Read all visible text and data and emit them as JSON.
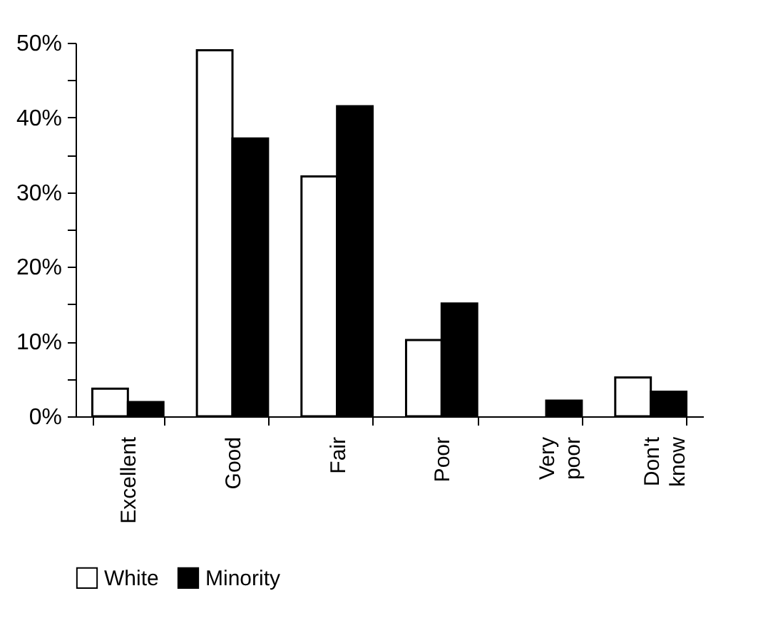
{
  "chart_data": {
    "type": "bar",
    "categories": [
      "Excellent",
      "Good",
      "Fair",
      "Poor",
      "Very poor",
      "Don't know"
    ],
    "series": [
      {
        "name": "White",
        "color": "#ffffff",
        "values": [
          3.7,
          49.0,
          32.1,
          10.2,
          null,
          5.2
        ]
      },
      {
        "name": "Minority",
        "color": "#000000",
        "values": [
          1.9,
          37.2,
          41.5,
          15.1,
          2.1,
          3.3
        ]
      }
    ],
    "ylim": [
      0,
      50
    ],
    "yticks": [
      {
        "value": 0,
        "label": "0%"
      },
      {
        "value": 5,
        "label": null
      },
      {
        "value": 10,
        "label": "10%"
      },
      {
        "value": 15,
        "label": null
      },
      {
        "value": 20,
        "label": "20%"
      },
      {
        "value": 25,
        "label": null
      },
      {
        "value": 30,
        "label": "30%"
      },
      {
        "value": 35,
        "label": null
      },
      {
        "value": 40,
        "label": "40%"
      },
      {
        "value": 45,
        "label": null
      },
      {
        "value": 50,
        "label": "50%"
      }
    ],
    "grid": false,
    "legend": "bottom"
  }
}
